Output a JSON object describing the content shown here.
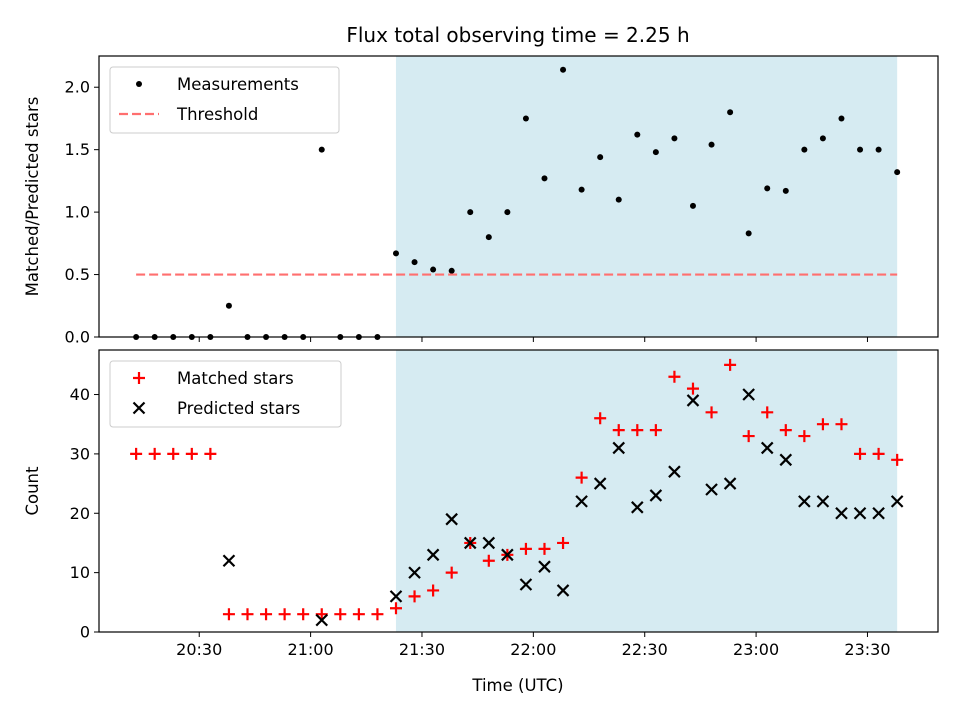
{
  "chart_data": {
    "title": "Flux total observing time = 2.25 h",
    "xlabel": "Time (UTC)",
    "x_ticks": [
      "20:30",
      "21:00",
      "21:30",
      "22:00",
      "22:30",
      "23:00",
      "23:30"
    ],
    "xlim": [
      "20:03",
      "23:49"
    ],
    "shaded_region": {
      "start": "21:23",
      "end": "23:38",
      "color": "#add8e6"
    },
    "panels": [
      {
        "type": "scatter",
        "ylabel": "Matched/Predicted stars",
        "ylim": [
          0,
          2.25
        ],
        "y_ticks": [
          "0.0",
          "0.5",
          "1.0",
          "1.5",
          "2.0"
        ],
        "legend": {
          "position": "top-left"
        },
        "series": [
          {
            "name": "Measurements",
            "marker": "dot",
            "color": "#000000",
            "points": [
              [
                "20:13",
                0
              ],
              [
                "20:18",
                0
              ],
              [
                "20:23",
                0
              ],
              [
                "20:28",
                0
              ],
              [
                "20:33",
                0
              ],
              [
                "20:38",
                0.25
              ],
              [
                "20:43",
                0
              ],
              [
                "20:48",
                0
              ],
              [
                "20:53",
                0
              ],
              [
                "20:58",
                0
              ],
              [
                "21:03",
                1.5
              ],
              [
                "21:08",
                0
              ],
              [
                "21:13",
                0
              ],
              [
                "21:18",
                0
              ],
              [
                "21:23",
                0.67
              ],
              [
                "21:28",
                0.6
              ],
              [
                "21:33",
                0.54
              ],
              [
                "21:38",
                0.53
              ],
              [
                "21:43",
                1.0
              ],
              [
                "21:48",
                0.8
              ],
              [
                "21:53",
                1.0
              ],
              [
                "21:58",
                1.75
              ],
              [
                "22:03",
                1.27
              ],
              [
                "22:08",
                2.14
              ],
              [
                "22:13",
                1.18
              ],
              [
                "22:18",
                1.44
              ],
              [
                "22:23",
                1.1
              ],
              [
                "22:28",
                1.62
              ],
              [
                "22:33",
                1.48
              ],
              [
                "22:38",
                1.59
              ],
              [
                "22:43",
                1.05
              ],
              [
                "22:48",
                1.54
              ],
              [
                "22:53",
                1.8
              ],
              [
                "22:58",
                0.83
              ],
              [
                "23:03",
                1.19
              ],
              [
                "23:08",
                1.17
              ],
              [
                "23:13",
                1.5
              ],
              [
                "23:18",
                1.59
              ],
              [
                "23:23",
                1.75
              ],
              [
                "23:28",
                1.5
              ],
              [
                "23:33",
                1.5
              ],
              [
                "23:38",
                1.32
              ]
            ]
          },
          {
            "name": "Threshold",
            "line": "dashed",
            "color": "#ff6f6f",
            "points": [
              [
                "20:13",
                0.5
              ],
              [
                "23:38",
                0.5
              ]
            ]
          }
        ]
      },
      {
        "type": "scatter",
        "ylabel": "Count",
        "ylim": [
          0,
          47.5
        ],
        "y_ticks": [
          "0",
          "10",
          "20",
          "30",
          "40"
        ],
        "legend": {
          "position": "top-left"
        },
        "series": [
          {
            "name": "Matched stars",
            "marker": "plus",
            "color": "#ff0000",
            "points": [
              [
                "20:13",
                30
              ],
              [
                "20:18",
                30
              ],
              [
                "20:23",
                30
              ],
              [
                "20:28",
                30
              ],
              [
                "20:33",
                30
              ],
              [
                "20:38",
                3
              ],
              [
                "20:43",
                3
              ],
              [
                "20:48",
                3
              ],
              [
                "20:53",
                3
              ],
              [
                "20:58",
                3
              ],
              [
                "21:03",
                3
              ],
              [
                "21:08",
                3
              ],
              [
                "21:13",
                3
              ],
              [
                "21:18",
                3
              ],
              [
                "21:23",
                4
              ],
              [
                "21:28",
                6
              ],
              [
                "21:33",
                7
              ],
              [
                "21:38",
                10
              ],
              [
                "21:43",
                15
              ],
              [
                "21:48",
                12
              ],
              [
                "21:53",
                13
              ],
              [
                "21:58",
                14
              ],
              [
                "22:03",
                14
              ],
              [
                "22:08",
                15
              ],
              [
                "22:13",
                26
              ],
              [
                "22:18",
                36
              ],
              [
                "22:23",
                34
              ],
              [
                "22:28",
                34
              ],
              [
                "22:33",
                34
              ],
              [
                "22:38",
                43
              ],
              [
                "22:43",
                41
              ],
              [
                "22:48",
                37
              ],
              [
                "22:53",
                45
              ],
              [
                "22:58",
                33
              ],
              [
                "23:03",
                37
              ],
              [
                "23:08",
                34
              ],
              [
                "23:13",
                33
              ],
              [
                "23:18",
                35
              ],
              [
                "23:23",
                35
              ],
              [
                "23:28",
                30
              ],
              [
                "23:33",
                30
              ],
              [
                "23:38",
                29
              ]
            ]
          },
          {
            "name": "Predicted stars",
            "marker": "x",
            "color": "#000000",
            "points": [
              [
                "20:38",
                12
              ],
              [
                "21:03",
                2
              ],
              [
                "21:23",
                6
              ],
              [
                "21:28",
                10
              ],
              [
                "21:33",
                13
              ],
              [
                "21:38",
                19
              ],
              [
                "21:43",
                15
              ],
              [
                "21:48",
                15
              ],
              [
                "21:53",
                13
              ],
              [
                "21:58",
                8
              ],
              [
                "22:03",
                11
              ],
              [
                "22:08",
                7
              ],
              [
                "22:13",
                22
              ],
              [
                "22:18",
                25
              ],
              [
                "22:23",
                31
              ],
              [
                "22:28",
                21
              ],
              [
                "22:33",
                23
              ],
              [
                "22:38",
                27
              ],
              [
                "22:43",
                39
              ],
              [
                "22:48",
                24
              ],
              [
                "22:53",
                25
              ],
              [
                "22:58",
                40
              ],
              [
                "23:03",
                31
              ],
              [
                "23:08",
                29
              ],
              [
                "23:13",
                22
              ],
              [
                "23:18",
                22
              ],
              [
                "23:23",
                20
              ],
              [
                "23:28",
                20
              ],
              [
                "23:33",
                20
              ],
              [
                "23:38",
                22
              ]
            ]
          }
        ]
      }
    ]
  }
}
